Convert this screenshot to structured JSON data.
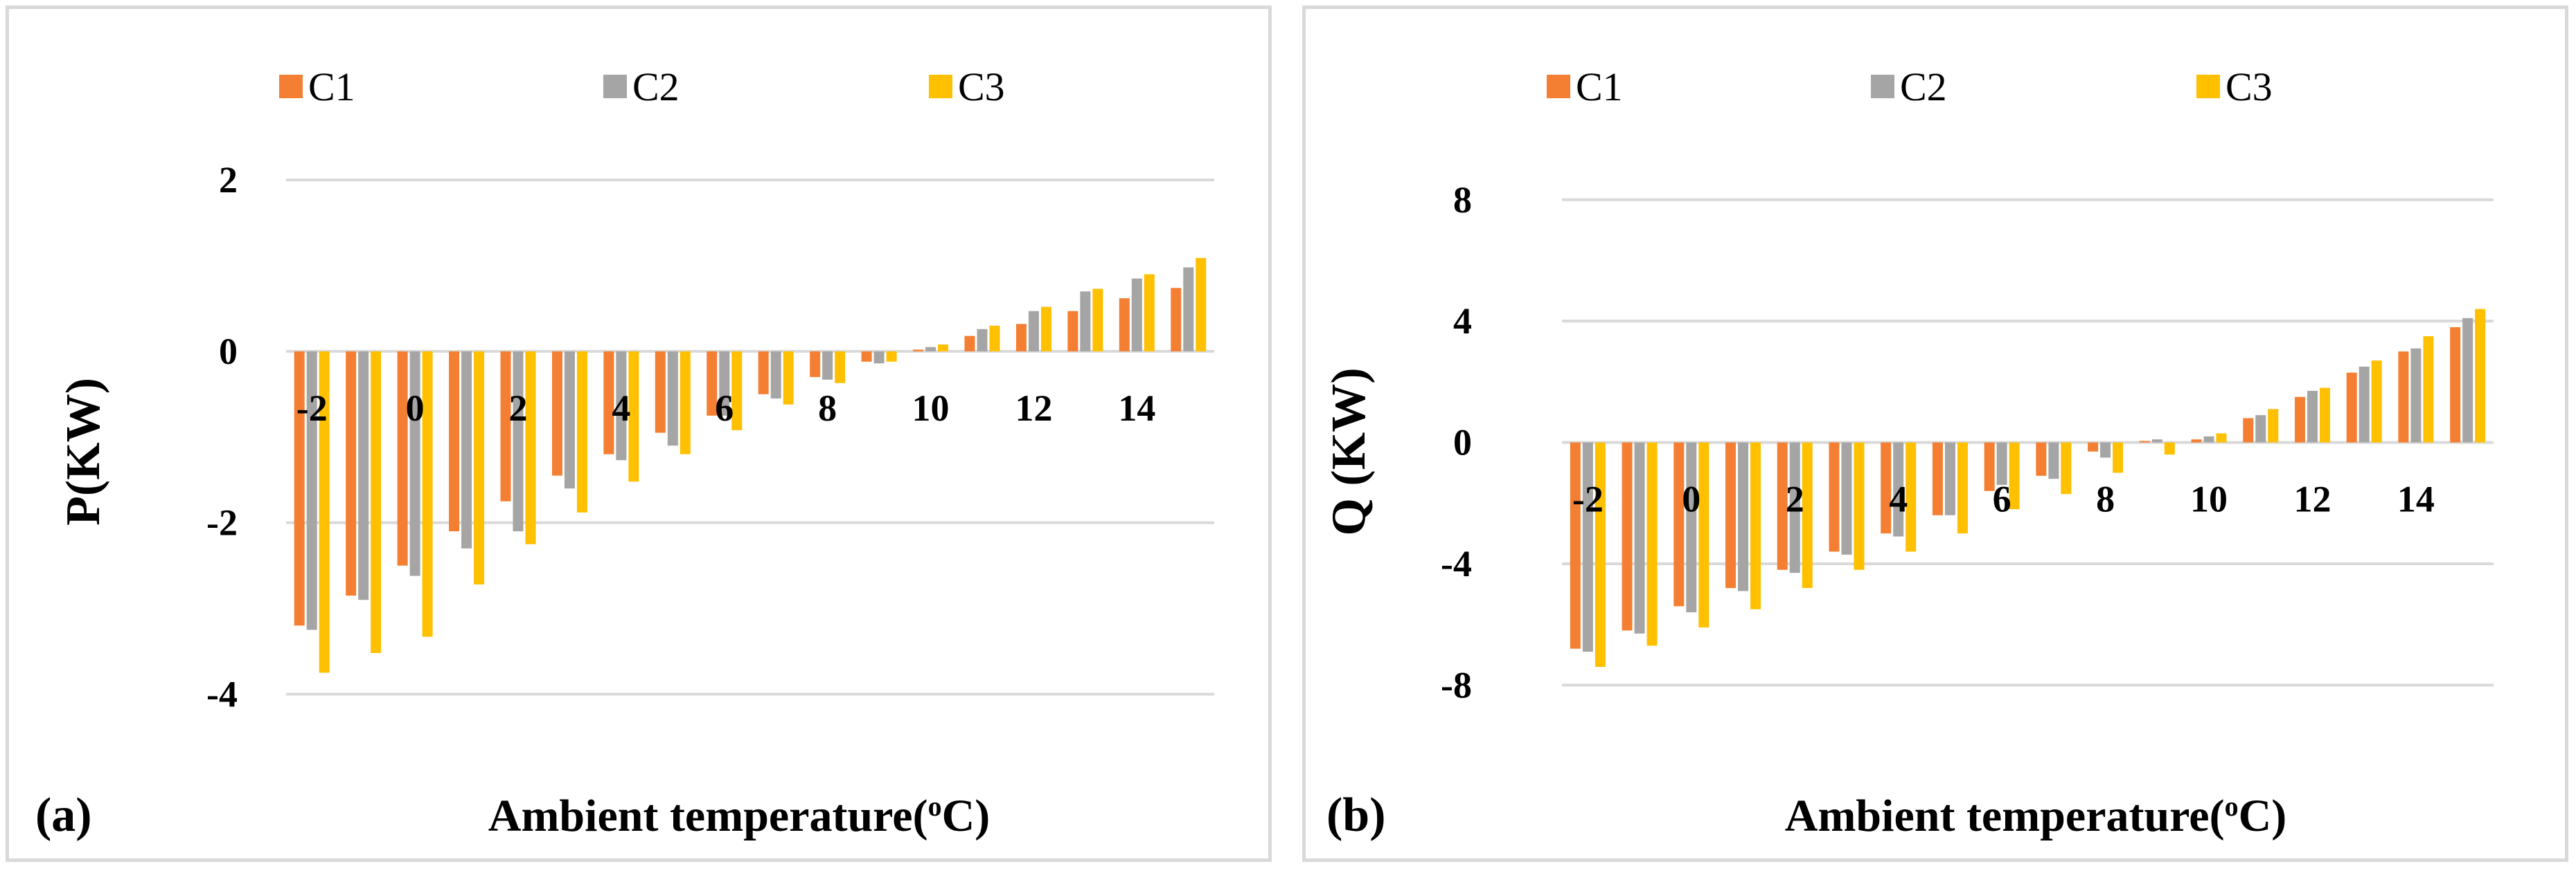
{
  "colors": {
    "C1": "#f47f32",
    "C2": "#a5a5a5",
    "C3": "#ffc000",
    "grid": "#d9d9d9"
  },
  "chart_data": [
    {
      "type": "bar",
      "panel_label": "(a)",
      "title": "",
      "xlabel": "Ambient temperature(",
      "xlabel_sup": "o",
      "xlabel_end": "C)",
      "ylabel": "P(KW)",
      "ylim": [
        -4.4,
        2.3
      ],
      "yticks": [
        2,
        0,
        -2,
        -4
      ],
      "x": [
        -2,
        -1,
        0,
        1,
        2,
        3,
        4,
        5,
        6,
        7,
        8,
        9,
        10,
        11,
        12,
        13,
        14,
        15
      ],
      "xtick_labels": [
        "-2",
        "0",
        "2",
        "4",
        "6",
        "8",
        "10",
        "12",
        "14"
      ],
      "legend": [
        "C1",
        "C2",
        "C3"
      ],
      "series": [
        {
          "name": "C1",
          "values": [
            -3.2,
            -2.85,
            -2.5,
            -2.1,
            -1.75,
            -1.45,
            -1.2,
            -0.95,
            -0.75,
            -0.5,
            -0.3,
            -0.12,
            0.02,
            0.18,
            0.32,
            0.47,
            0.62,
            0.74
          ]
        },
        {
          "name": "C2",
          "values": [
            -3.25,
            -2.9,
            -2.62,
            -2.3,
            -2.1,
            -1.6,
            -1.27,
            -1.1,
            -0.75,
            -0.55,
            -0.33,
            -0.14,
            0.05,
            0.26,
            0.47,
            0.7,
            0.85,
            0.98
          ]
        },
        {
          "name": "C3",
          "values": [
            -3.75,
            -3.52,
            -3.33,
            -2.72,
            -2.25,
            -1.88,
            -1.52,
            -1.2,
            -0.92,
            -0.62,
            -0.37,
            -0.12,
            0.08,
            0.3,
            0.52,
            0.73,
            0.9,
            1.09
          ]
        }
      ]
    },
    {
      "type": "bar",
      "panel_label": "(b)",
      "title": "",
      "xlabel": "Ambient temperature(",
      "xlabel_sup": "o",
      "xlabel_end": "C)",
      "ylabel": "Q (KW)",
      "ylim": [
        -9.2,
        9.5
      ],
      "yticks": [
        8,
        4,
        0,
        -4,
        -8
      ],
      "x": [
        -2,
        -1,
        0,
        1,
        2,
        3,
        4,
        5,
        6,
        7,
        8,
        9,
        10,
        11,
        12,
        13,
        14,
        15
      ],
      "xtick_labels": [
        "-2",
        "0",
        "2",
        "4",
        "6",
        "8",
        "10",
        "12",
        "14"
      ],
      "legend": [
        "C1",
        "C2",
        "C3"
      ],
      "series": [
        {
          "name": "C1",
          "values": [
            -6.8,
            -6.2,
            -5.4,
            -4.8,
            -4.2,
            -3.6,
            -3.0,
            -2.4,
            -1.6,
            -1.1,
            -0.3,
            0.05,
            0.1,
            0.8,
            1.5,
            2.3,
            3.0,
            3.8
          ]
        },
        {
          "name": "C2",
          "values": [
            -6.9,
            -6.3,
            -5.6,
            -4.9,
            -4.3,
            -3.7,
            -3.1,
            -2.4,
            -1.4,
            -1.2,
            -0.5,
            0.1,
            0.2,
            0.9,
            1.7,
            2.5,
            3.1,
            4.1
          ]
        },
        {
          "name": "C3",
          "values": [
            -7.4,
            -6.7,
            -6.1,
            -5.5,
            -4.8,
            -4.2,
            -3.6,
            -3.0,
            -2.2,
            -1.7,
            -1.0,
            -0.4,
            0.3,
            1.1,
            1.8,
            2.7,
            3.5,
            4.4
          ]
        }
      ]
    }
  ]
}
